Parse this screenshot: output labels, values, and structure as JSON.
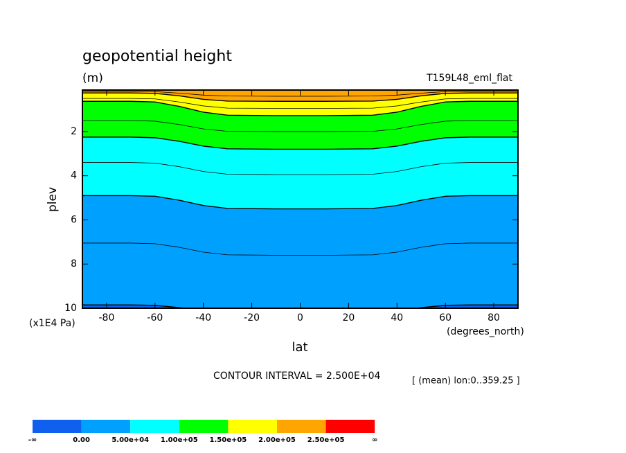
{
  "chart_data": {
    "type": "contour",
    "title": "geopotential height",
    "units": "(m)",
    "dataset": "T159L48_eml_flat",
    "y_label": "plev",
    "y_units": "(x1E4 Pa)",
    "x_label": "lat",
    "x_units": "(degrees_north)",
    "contour_interval": "CONTOUR INTERVAL = 2.500E+04",
    "note": "[ (mean) lon:0..359.25 ]",
    "xlim": [
      -90,
      90
    ],
    "xticks": [
      -80,
      -60,
      -40,
      -20,
      0,
      20,
      40,
      60,
      80
    ],
    "ylim": [
      10,
      0.12
    ],
    "yticks": [
      2,
      4,
      6,
      8,
      10
    ],
    "x": [
      -90,
      -70,
      -60,
      -50,
      -40,
      -30,
      -10,
      10,
      30,
      40,
      50,
      60,
      70,
      90
    ],
    "series": [
      {
        "level": 0,
        "values": [
          9.85,
          9.85,
          9.87,
          9.97,
          10.11,
          10.19,
          10.2,
          10.2,
          10.19,
          10.11,
          9.97,
          9.87,
          9.85,
          9.85
        ]
      },
      {
        "level": 25000,
        "values": [
          7.05,
          7.05,
          7.08,
          7.24,
          7.46,
          7.58,
          7.6,
          7.6,
          7.58,
          7.46,
          7.24,
          7.08,
          7.05,
          7.05
        ]
      },
      {
        "level": 50000,
        "values": [
          4.9,
          4.9,
          4.93,
          5.11,
          5.35,
          5.48,
          5.5,
          5.5,
          5.48,
          5.35,
          5.11,
          4.93,
          4.9,
          4.9
        ]
      },
      {
        "level": 75000,
        "values": [
          3.4,
          3.4,
          3.43,
          3.59,
          3.81,
          3.93,
          3.95,
          3.95,
          3.93,
          3.81,
          3.59,
          3.43,
          3.4,
          3.4
        ]
      },
      {
        "level": 100000,
        "values": [
          2.25,
          2.25,
          2.28,
          2.44,
          2.66,
          2.78,
          2.8,
          2.8,
          2.78,
          2.66,
          2.44,
          2.28,
          2.25,
          2.25
        ]
      },
      {
        "level": 125000,
        "values": [
          1.5,
          1.5,
          1.53,
          1.68,
          1.88,
          1.99,
          2.0,
          2.0,
          1.99,
          1.88,
          1.68,
          1.53,
          1.5,
          1.5
        ]
      },
      {
        "level": 150000,
        "values": [
          0.63,
          0.63,
          0.66,
          0.86,
          1.12,
          1.26,
          1.28,
          1.28,
          1.26,
          1.12,
          0.86,
          0.66,
          0.63,
          0.63
        ]
      },
      {
        "level": 175000,
        "values": [
          0.5,
          0.5,
          0.52,
          0.66,
          0.84,
          0.94,
          0.95,
          0.95,
          0.94,
          0.84,
          0.66,
          0.52,
          0.5,
          0.5
        ]
      },
      {
        "level": 200000,
        "values": [
          0.25,
          0.25,
          0.27,
          0.38,
          0.54,
          0.62,
          0.63,
          0.63,
          0.62,
          0.54,
          0.38,
          0.27,
          0.25,
          0.25
        ]
      },
      {
        "level": 225000,
        "values": [
          0.18,
          0.18,
          0.19,
          0.26,
          0.35,
          0.39,
          0.4,
          0.4,
          0.39,
          0.35,
          0.26,
          0.19,
          0.18,
          0.18
        ]
      }
    ],
    "colorbar": {
      "colors": [
        "#1060f0",
        "#00a0ff",
        "#00ffff",
        "#00ff00",
        "#ffff00",
        "#ffa500",
        "#ff0000"
      ],
      "low_label": "-∞",
      "ticks": [
        {
          "value": 0,
          "label": "0.00"
        },
        {
          "value": 50000,
          "label": "5.00e+04"
        },
        {
          "value": 100000,
          "label": "1.00e+05"
        },
        {
          "value": 150000,
          "label": "1.50e+05"
        },
        {
          "value": 200000,
          "label": "2.00e+05"
        },
        {
          "value": 250000,
          "label": "2.50e+05"
        }
      ],
      "high_label": "∞"
    }
  }
}
